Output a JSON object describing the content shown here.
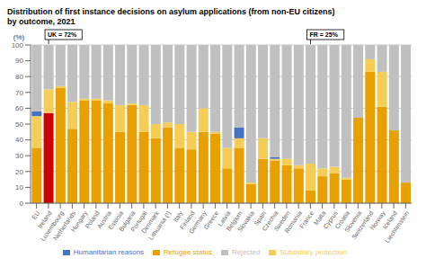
{
  "chart_data": {
    "type": "bar",
    "title": "Distribution of first instance decisions on asylum applications (from non-EU citizens)",
    "subtitle": "by outcome, 2021",
    "y_label": "(%)",
    "categories": [
      "EU",
      "Ireland",
      "Luxembourg",
      "Netherlands",
      "Hungary",
      "Poland",
      "Austria",
      "Estonia",
      "Bulgaria",
      "Portugal",
      "Denmark",
      "Lithuania (¹)",
      "Italy",
      "Finland",
      "Germany",
      "Greece",
      "Latvia",
      "Belgium",
      "Slovakia",
      "Spain",
      "Czechia",
      "Sweden",
      "Romania",
      "France",
      "Malta",
      "Cyprus",
      "Croatia",
      "Slovenia",
      "Switzerland",
      "Norway",
      "Iceland",
      "Liechtenstein"
    ],
    "series": [
      {
        "name": "Refugee status",
        "color": "#e8a000",
        "colors": [
          "#e8a000",
          "#cc0000",
          "#e8a000",
          "#e8a000",
          "#e8a000",
          "#e8a000",
          "#e8a000",
          "#e8a000",
          "#e8a000",
          "#e8a000",
          "#e8a000",
          "#e8a000",
          "#e8a000",
          "#e8a000",
          "#e8a000",
          "#e8a000",
          "#e8a000",
          "#e8a000",
          "#e8a000",
          "#e8a000",
          "#e8a000",
          "#e8a000",
          "#e8a000",
          "#e8a000",
          "#e8a000",
          "#e8a000",
          "#e8a000",
          "#e8a000",
          "#e8a000",
          "#e8a000",
          "#e8a000",
          "#e8a000"
        ],
        "values": [
          35,
          57,
          73,
          47,
          65,
          65,
          63,
          45,
          62,
          45,
          41,
          48,
          35,
          34,
          45,
          44,
          22,
          35,
          12,
          28,
          27,
          24,
          22,
          8,
          17,
          19,
          15,
          54,
          83,
          61,
          46,
          13
        ]
      },
      {
        "name": "Subsidiary protection",
        "color": "#f5cc55",
        "values": [
          20,
          15,
          1,
          17,
          1,
          1,
          2,
          17,
          1,
          17,
          9,
          3,
          15,
          11,
          15,
          1,
          13,
          6,
          1,
          13,
          1,
          4,
          2,
          17,
          5,
          4,
          1,
          0,
          8,
          22,
          0,
          0
        ]
      },
      {
        "name": "Humanitarian reasons",
        "color": "#4472c4",
        "values": [
          3,
          0,
          0,
          0,
          0,
          0,
          0,
          0,
          0,
          0,
          0,
          0,
          0,
          0,
          0,
          0,
          0,
          7,
          0,
          0,
          1,
          0,
          0,
          0,
          0,
          0,
          0,
          0,
          0,
          0,
          0,
          0
        ]
      },
      {
        "name": "Rejected",
        "color": "#c0c0c0",
        "values": [
          42,
          28,
          26,
          36,
          34,
          34,
          35,
          38,
          37,
          38,
          50,
          49,
          50,
          55,
          40,
          55,
          65,
          52,
          87,
          59,
          71,
          72,
          76,
          75,
          78,
          77,
          84,
          46,
          9,
          17,
          54,
          87
        ]
      }
    ],
    "stacked": true,
    "ylim": [
      0,
      100
    ],
    "yticks": [
      0,
      10,
      20,
      30,
      40,
      50,
      60,
      70,
      80,
      90,
      100
    ],
    "grid": true,
    "legend": "bottom",
    "annotations": [
      {
        "text": "FR = 25%",
        "category": "France"
      },
      {
        "text": "UK = 72%",
        "category": "Ireland"
      }
    ]
  }
}
